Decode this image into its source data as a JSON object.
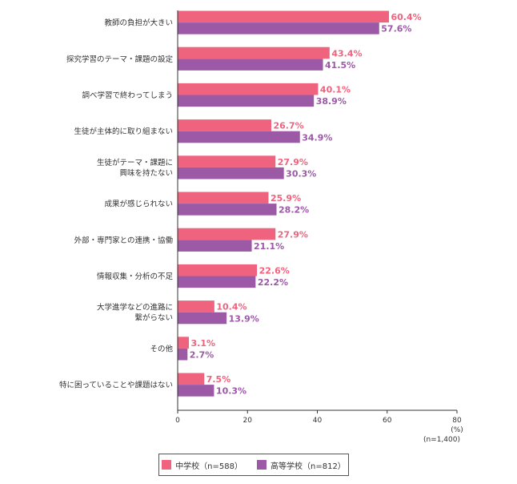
{
  "chart_data": {
    "type": "bar",
    "orientation": "horizontal",
    "categories": [
      "教師の負担が大きい",
      "探究学習のテーマ・課題の設定",
      "調べ学習で終わってしまう",
      "生徒が主体的に取り組まない",
      "生徒がテーマ・課題に\n興味を持たない",
      "成果が感じられない",
      "外部・専門家との連携・協働",
      "情報収集・分析の不足",
      "大学進学などの進路に\n繋がらない",
      "その他",
      "特に困っていることや課題はない"
    ],
    "series": [
      {
        "name": "中学校（n=588）",
        "color": "#f0637f",
        "values": [
          60.4,
          43.4,
          40.1,
          26.7,
          27.9,
          25.9,
          27.9,
          22.6,
          10.4,
          3.1,
          7.5
        ]
      },
      {
        "name": "高等学校（n=812）",
        "color": "#9b59a6",
        "values": [
          57.6,
          41.5,
          38.9,
          34.9,
          30.3,
          28.2,
          21.1,
          22.2,
          13.9,
          2.7,
          10.3
        ]
      }
    ],
    "xlim": [
      0,
      80
    ],
    "xticks": [
      0,
      20,
      40,
      60,
      80
    ],
    "xunit": "(%)",
    "note": "(n=1,400)",
    "value_suffix": "%"
  },
  "legend": {
    "items": [
      {
        "label": "中学校（n=588）",
        "color": "#f0637f"
      },
      {
        "label": "高等学校（n=812）",
        "color": "#9b59a6"
      }
    ]
  }
}
